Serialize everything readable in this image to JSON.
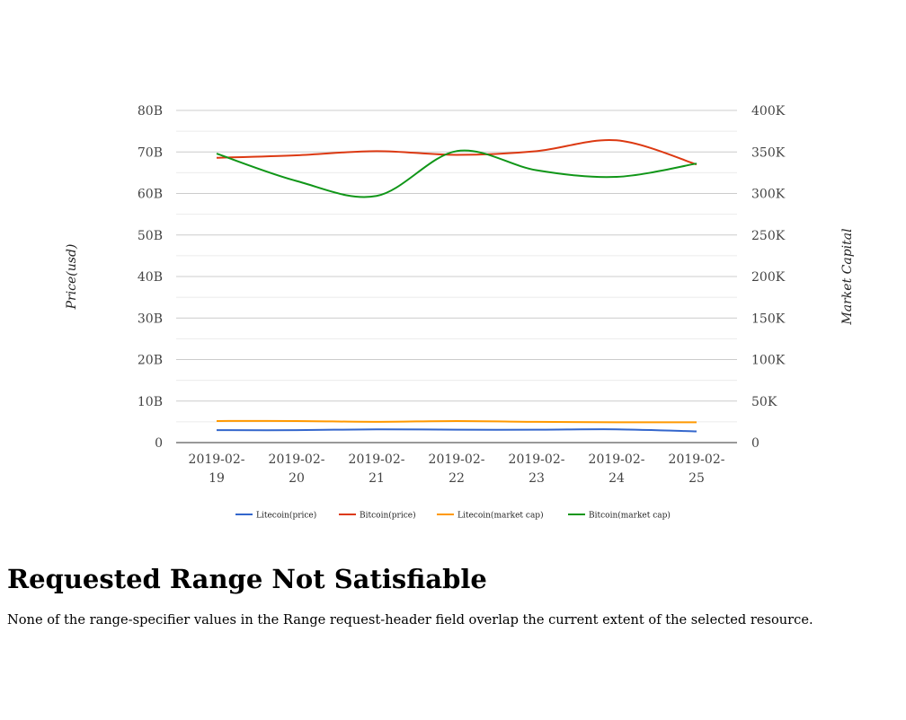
{
  "chart_data": {
    "type": "line",
    "categories": [
      "2019-02-19",
      "2019-02-20",
      "2019-02-21",
      "2019-02-22",
      "2019-02-23",
      "2019-02-24",
      "2019-02-25"
    ],
    "category_lines": [
      [
        "2019-02-",
        "19"
      ],
      [
        "2019-02-",
        "20"
      ],
      [
        "2019-02-",
        "21"
      ],
      [
        "2019-02-",
        "22"
      ],
      [
        "2019-02-",
        "23"
      ],
      [
        "2019-02-",
        "24"
      ],
      [
        "2019-02-",
        "25"
      ]
    ],
    "y_left": {
      "label": "Price(usd)",
      "range": [
        0,
        80000000000
      ],
      "ticks": [
        0,
        10000000000,
        20000000000,
        30000000000,
        40000000000,
        50000000000,
        60000000000,
        70000000000,
        80000000000
      ],
      "tick_labels": [
        "0",
        "10B",
        "20B",
        "30B",
        "40B",
        "50B",
        "60B",
        "70B",
        "80B"
      ]
    },
    "y_right": {
      "label": "Market Capital",
      "range": [
        0,
        400000
      ],
      "ticks": [
        0,
        50000,
        100000,
        150000,
        200000,
        250000,
        300000,
        350000,
        400000
      ],
      "tick_labels": [
        "0",
        "50K",
        "100K",
        "150K",
        "200K",
        "250K",
        "300K",
        "350K",
        "400K"
      ]
    },
    "grid": true,
    "legend_position": "bottom",
    "series": [
      {
        "name": "Litecoin(price)",
        "color": "#3366cc",
        "axis": "left",
        "values": [
          3000000000,
          3000000000,
          3200000000,
          3100000000,
          3100000000,
          3200000000,
          2700000000
        ]
      },
      {
        "name": "Bitcoin(price)",
        "color": "#dc3912",
        "axis": "left",
        "values": [
          68600000000,
          69200000000,
          70200000000,
          69300000000,
          70200000000,
          72800000000,
          67000000000
        ]
      },
      {
        "name": "Litecoin(market cap)",
        "color": "#ff9900",
        "axis": "left",
        "values": [
          5200000000,
          5200000000,
          5000000000,
          5200000000,
          5000000000,
          4900000000,
          4900000000
        ]
      },
      {
        "name": "Bitcoin(market cap)",
        "color": "#109618",
        "axis": "right",
        "values": [
          348000,
          315000,
          297000,
          351000,
          328000,
          320000,
          336000
        ]
      }
    ]
  },
  "error": {
    "title": "Requested Range Not Satisfiable",
    "message": "None of the range-specifier values in the Range request-header field overlap the current extent of the selected resource."
  }
}
